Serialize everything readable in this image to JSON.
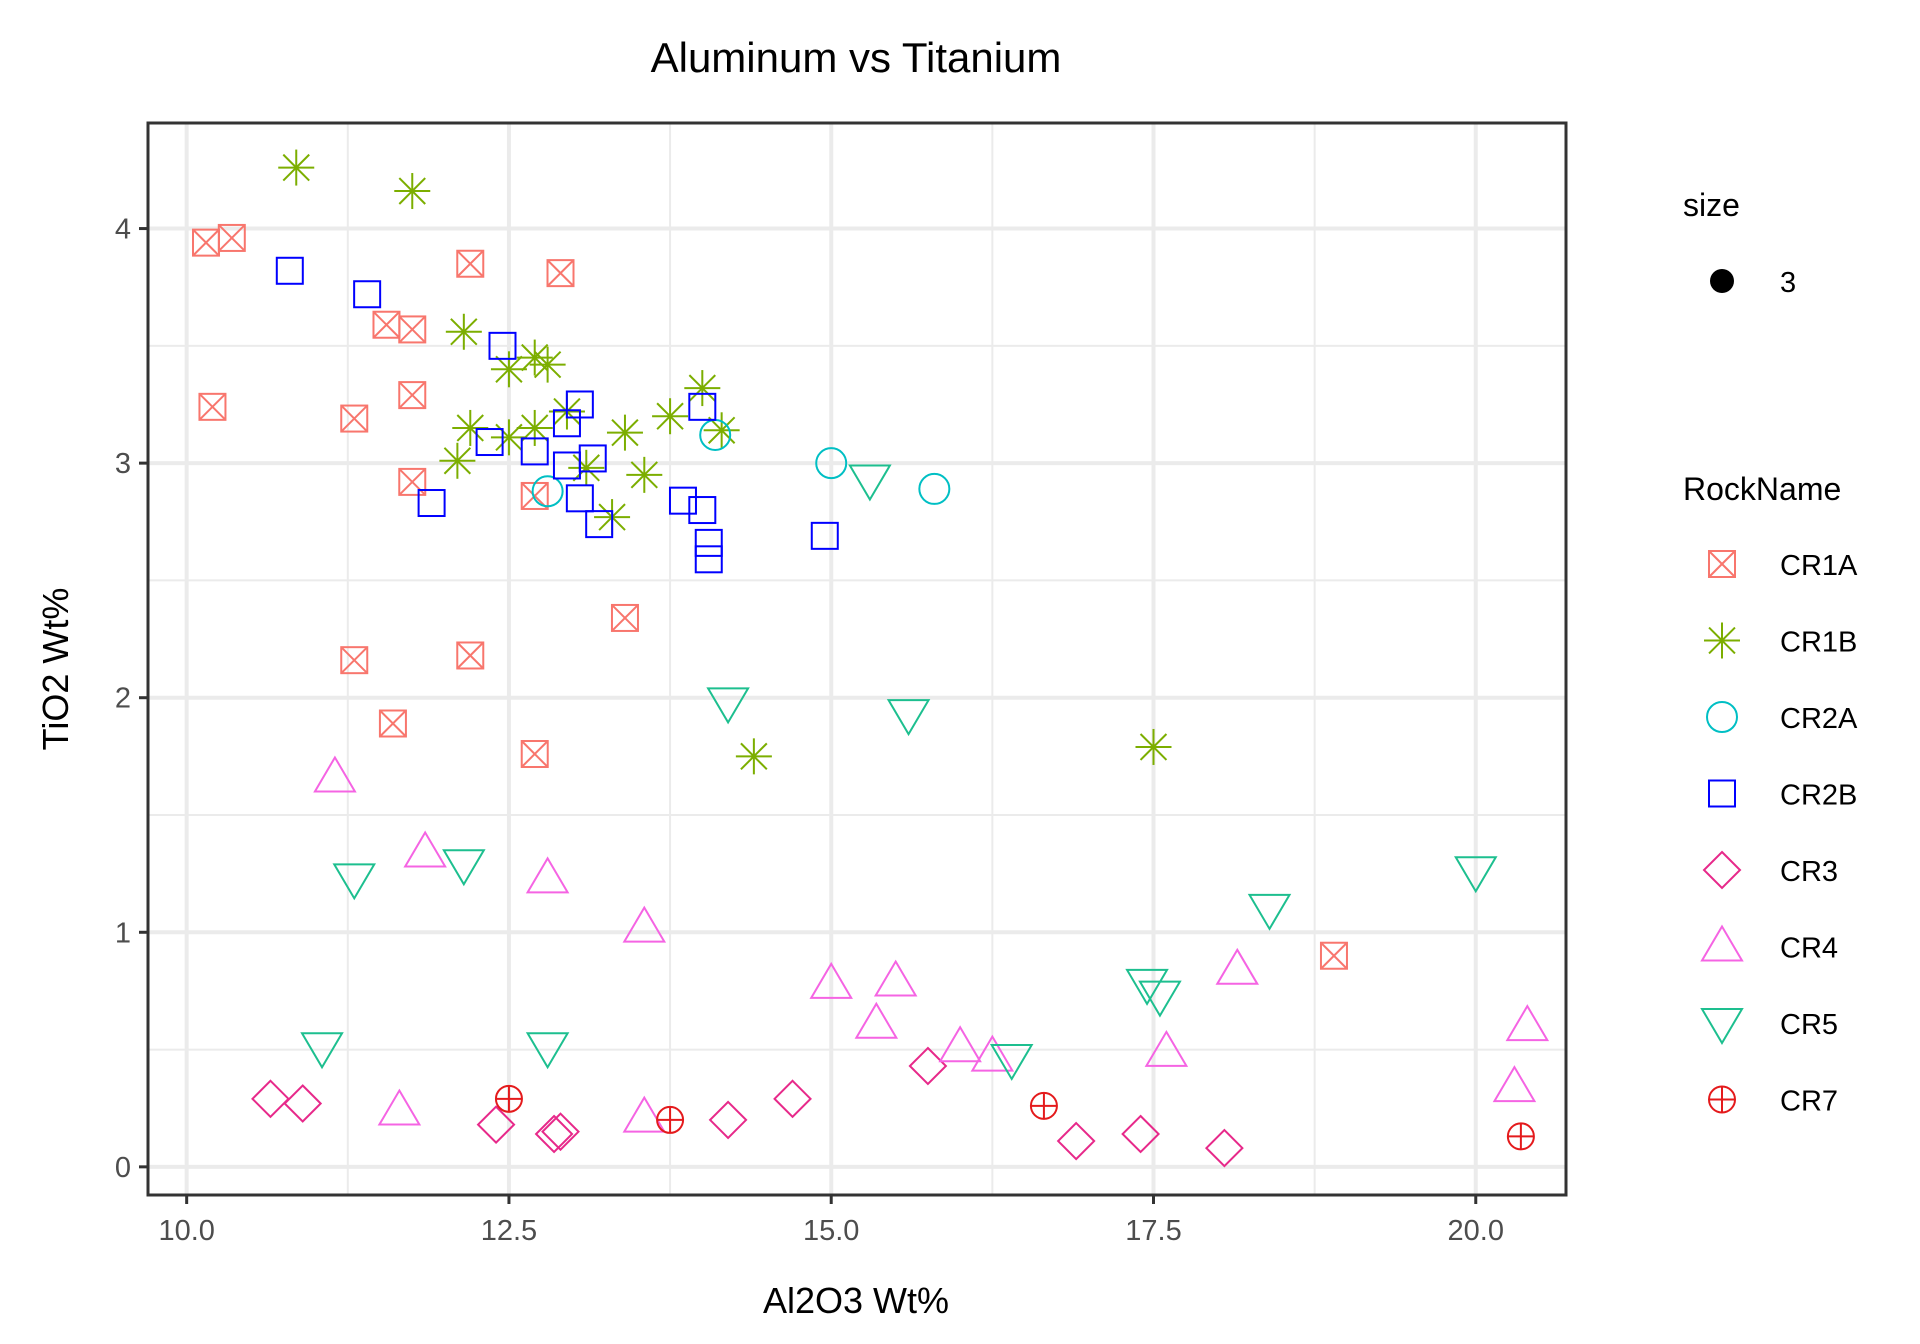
{
  "chart_data": {
    "type": "scatter",
    "title": "Aluminum vs Titanium",
    "xlabel": "Al2O3 Wt%",
    "ylabel": "TiO2 Wt%",
    "xlim": [
      9.7,
      20.7
    ],
    "ylim": [
      -0.12,
      4.45
    ],
    "x_ticks": [
      {
        "value": 10.0,
        "label": "10.0"
      },
      {
        "value": 12.5,
        "label": "12.5"
      },
      {
        "value": 15.0,
        "label": "15.0"
      },
      {
        "value": 17.5,
        "label": "17.5"
      },
      {
        "value": 20.0,
        "label": "20.0"
      }
    ],
    "y_ticks": [
      {
        "value": 0,
        "label": "0"
      },
      {
        "value": 1,
        "label": "1"
      },
      {
        "value": 2,
        "label": "2"
      },
      {
        "value": 3,
        "label": "3"
      },
      {
        "value": 4,
        "label": "4"
      }
    ],
    "grid": true,
    "legend_position": "right",
    "size_legend": {
      "title": "size",
      "label": "3"
    },
    "color_legend_title": "RockName",
    "series": [
      {
        "name": "CR1A",
        "color": "#F8766D",
        "shape": "square-cross",
        "points": [
          [
            10.15,
            3.94
          ],
          [
            10.35,
            3.96
          ],
          [
            10.2,
            3.24
          ],
          [
            11.3,
            3.19
          ],
          [
            11.3,
            2.16
          ],
          [
            11.55,
            3.59
          ],
          [
            11.75,
            3.57
          ],
          [
            11.75,
            3.29
          ],
          [
            11.75,
            2.92
          ],
          [
            11.6,
            1.89
          ],
          [
            12.2,
            3.85
          ],
          [
            12.2,
            2.18
          ],
          [
            12.9,
            3.81
          ],
          [
            12.7,
            2.86
          ],
          [
            12.7,
            1.76
          ],
          [
            13.4,
            2.34
          ],
          [
            18.9,
            0.9
          ]
        ]
      },
      {
        "name": "CR1B",
        "color": "#7CAE00",
        "shape": "star",
        "points": [
          [
            10.85,
            4.26
          ],
          [
            11.75,
            4.16
          ],
          [
            12.15,
            3.56
          ],
          [
            12.5,
            3.4
          ],
          [
            12.7,
            3.45
          ],
          [
            12.8,
            3.42
          ],
          [
            12.2,
            3.15
          ],
          [
            12.1,
            3.01
          ],
          [
            12.5,
            3.11
          ],
          [
            12.7,
            3.15
          ],
          [
            12.95,
            3.22
          ],
          [
            13.1,
            2.98
          ],
          [
            13.3,
            2.77
          ],
          [
            13.4,
            3.13
          ],
          [
            13.55,
            2.95
          ],
          [
            13.75,
            3.2
          ],
          [
            14.0,
            3.32
          ],
          [
            14.15,
            3.14
          ],
          [
            14.4,
            1.75
          ],
          [
            17.5,
            1.79
          ]
        ]
      },
      {
        "name": "CR2A",
        "color": "#00BFC4",
        "shape": "circle",
        "points": [
          [
            12.8,
            2.88
          ],
          [
            14.1,
            3.12
          ],
          [
            15.0,
            3.0
          ],
          [
            15.8,
            2.89
          ]
        ]
      },
      {
        "name": "CR2B",
        "color": "#0000FF",
        "shape": "square",
        "points": [
          [
            10.8,
            3.82
          ],
          [
            11.4,
            3.72
          ],
          [
            11.9,
            2.83
          ],
          [
            12.35,
            3.09
          ],
          [
            12.45,
            3.5
          ],
          [
            12.7,
            3.05
          ],
          [
            12.95,
            3.17
          ],
          [
            12.95,
            2.99
          ],
          [
            13.05,
            3.25
          ],
          [
            13.05,
            2.85
          ],
          [
            13.15,
            3.02
          ],
          [
            13.2,
            2.74
          ],
          [
            13.85,
            2.84
          ],
          [
            14.0,
            3.24
          ],
          [
            14.0,
            2.8
          ],
          [
            14.05,
            2.66
          ],
          [
            14.05,
            2.59
          ],
          [
            14.95,
            2.69
          ]
        ]
      },
      {
        "name": "CR3",
        "color": "#E7298A",
        "shape": "diamond",
        "points": [
          [
            10.65,
            0.29
          ],
          [
            10.9,
            0.27
          ],
          [
            12.4,
            0.18
          ],
          [
            12.85,
            0.14
          ],
          [
            12.9,
            0.15
          ],
          [
            14.2,
            0.2
          ],
          [
            14.7,
            0.29
          ],
          [
            15.75,
            0.43
          ],
          [
            16.9,
            0.11
          ],
          [
            17.4,
            0.14
          ],
          [
            18.05,
            0.08
          ]
        ]
      },
      {
        "name": "CR4",
        "color": "#F564E3",
        "shape": "triangle",
        "points": [
          [
            11.15,
            1.66
          ],
          [
            11.85,
            1.34
          ],
          [
            12.8,
            1.23
          ],
          [
            13.55,
            1.02
          ],
          [
            11.65,
            0.24
          ],
          [
            13.55,
            0.21
          ],
          [
            15.0,
            0.78
          ],
          [
            15.35,
            0.61
          ],
          [
            15.5,
            0.79
          ],
          [
            16.0,
            0.51
          ],
          [
            16.25,
            0.47
          ],
          [
            17.6,
            0.49
          ],
          [
            18.15,
            0.84
          ],
          [
            20.3,
            0.34
          ],
          [
            20.4,
            0.6
          ]
        ]
      },
      {
        "name": "CR5",
        "color": "#1DBF8F",
        "shape": "triangle-down",
        "points": [
          [
            11.3,
            1.23
          ],
          [
            12.15,
            1.29
          ],
          [
            11.05,
            0.51
          ],
          [
            12.8,
            0.51
          ],
          [
            14.2,
            1.98
          ],
          [
            15.3,
            2.93
          ],
          [
            15.6,
            1.93
          ],
          [
            16.4,
            0.46
          ],
          [
            17.45,
            0.78
          ],
          [
            17.55,
            0.73
          ],
          [
            18.4,
            1.1
          ],
          [
            20.0,
            1.26
          ]
        ]
      },
      {
        "name": "CR7",
        "color": "#E41A1C",
        "shape": "circle-plus",
        "points": [
          [
            12.5,
            0.29
          ],
          [
            13.75,
            0.2
          ],
          [
            16.65,
            0.26
          ],
          [
            20.35,
            0.13
          ]
        ]
      }
    ]
  }
}
